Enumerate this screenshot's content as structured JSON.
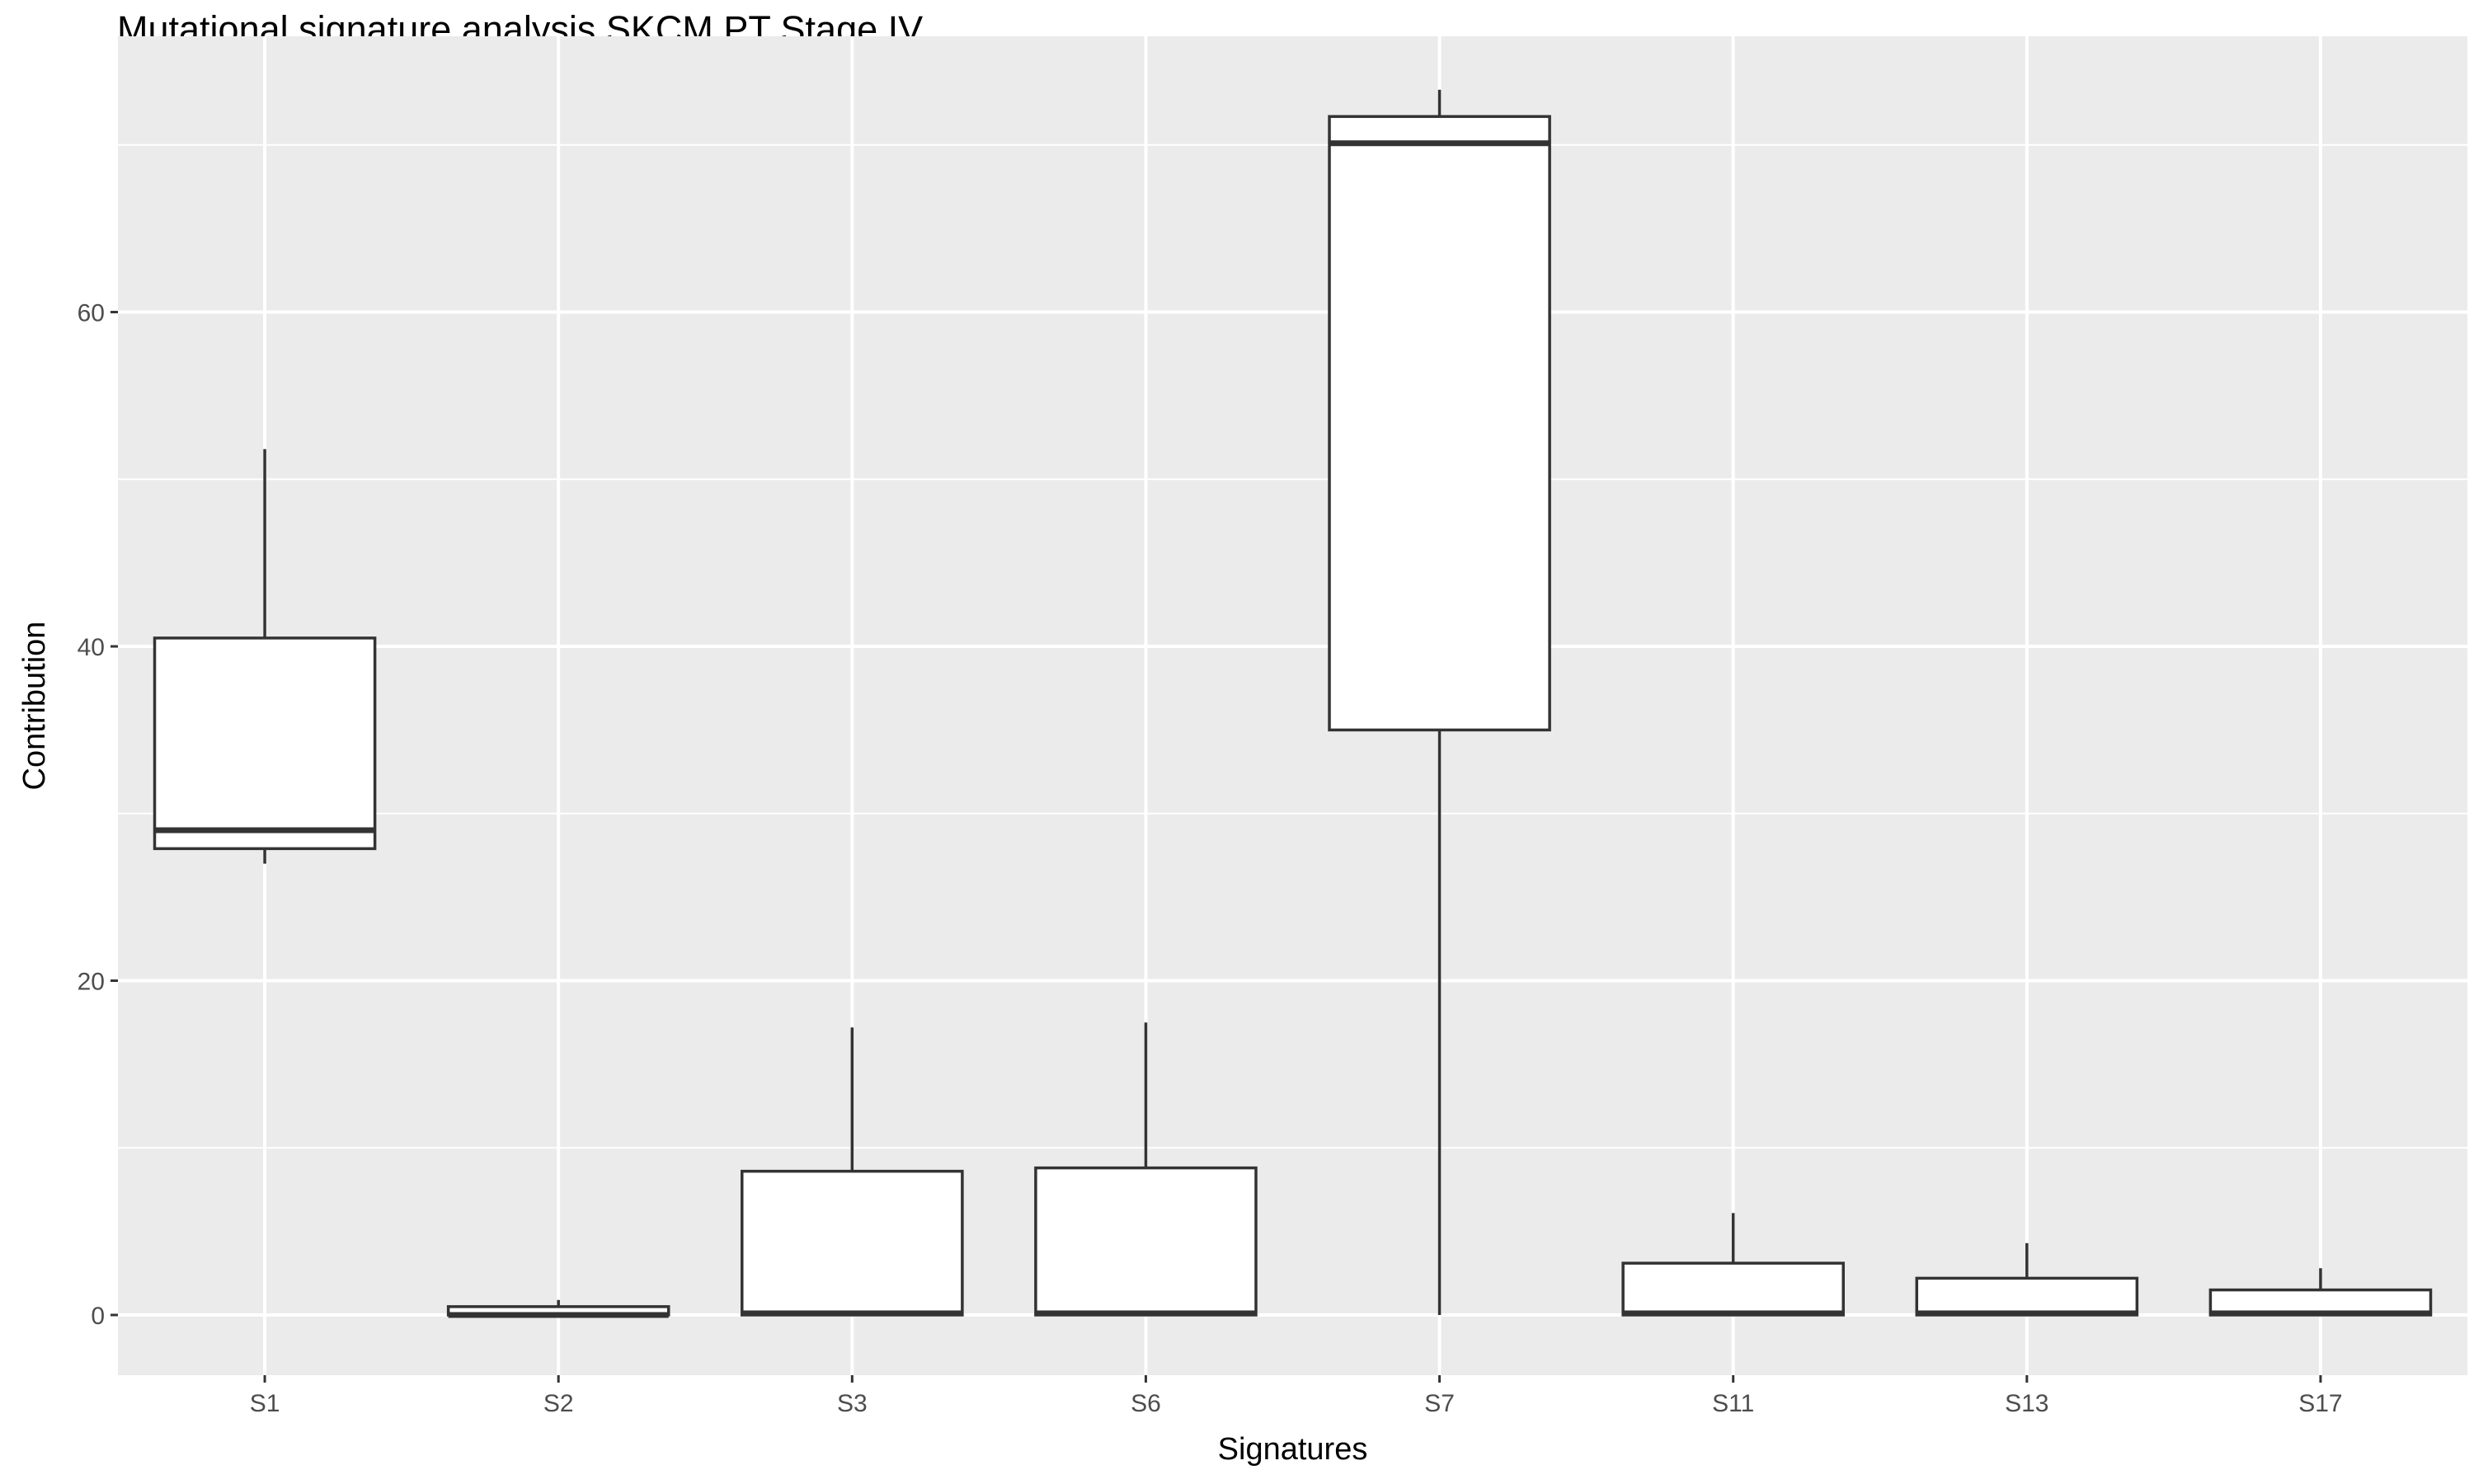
{
  "chart_data": {
    "type": "boxplot",
    "title": "Mutational signature analysis SKCM PT Stage IV",
    "xlabel": "Signatures",
    "ylabel": "Contribution",
    "ylim": [
      -3.6,
      76.5
    ],
    "yticks": [
      0,
      20,
      40,
      60
    ],
    "grid": true,
    "legend": "none",
    "colors": {
      "panel_bg": "#ebebeb",
      "grid": "#ffffff",
      "box_fill": "#ffffff",
      "box_line": "#333333",
      "tick_text": "#4d4d4d"
    },
    "categories": [
      "S1",
      "S2",
      "S3",
      "S6",
      "S7",
      "S11",
      "S13",
      "S17"
    ],
    "boxes": [
      {
        "name": "S1",
        "min": 27.0,
        "q1": 27.9,
        "median": 29.0,
        "q3": 40.5,
        "max": 51.8
      },
      {
        "name": "S2",
        "min": 0.0,
        "q1": 0.0,
        "median": 0.0,
        "q3": 0.5,
        "max": 0.9
      },
      {
        "name": "S3",
        "min": 0.0,
        "q1": 0.0,
        "median": 0.1,
        "q3": 8.6,
        "max": 17.2
      },
      {
        "name": "S6",
        "min": 0.0,
        "q1": 0.0,
        "median": 0.1,
        "q3": 8.8,
        "max": 17.5
      },
      {
        "name": "S7",
        "min": 0.0,
        "q1": 35.0,
        "median": 70.1,
        "q3": 71.7,
        "max": 73.3
      },
      {
        "name": "S11",
        "min": 0.0,
        "q1": 0.0,
        "median": 0.1,
        "q3": 3.1,
        "max": 6.1
      },
      {
        "name": "S13",
        "min": 0.0,
        "q1": 0.0,
        "median": 0.1,
        "q3": 2.2,
        "max": 4.3
      },
      {
        "name": "S17",
        "min": 0.0,
        "q1": 0.0,
        "median": 0.1,
        "q3": 1.5,
        "max": 2.8
      }
    ]
  }
}
